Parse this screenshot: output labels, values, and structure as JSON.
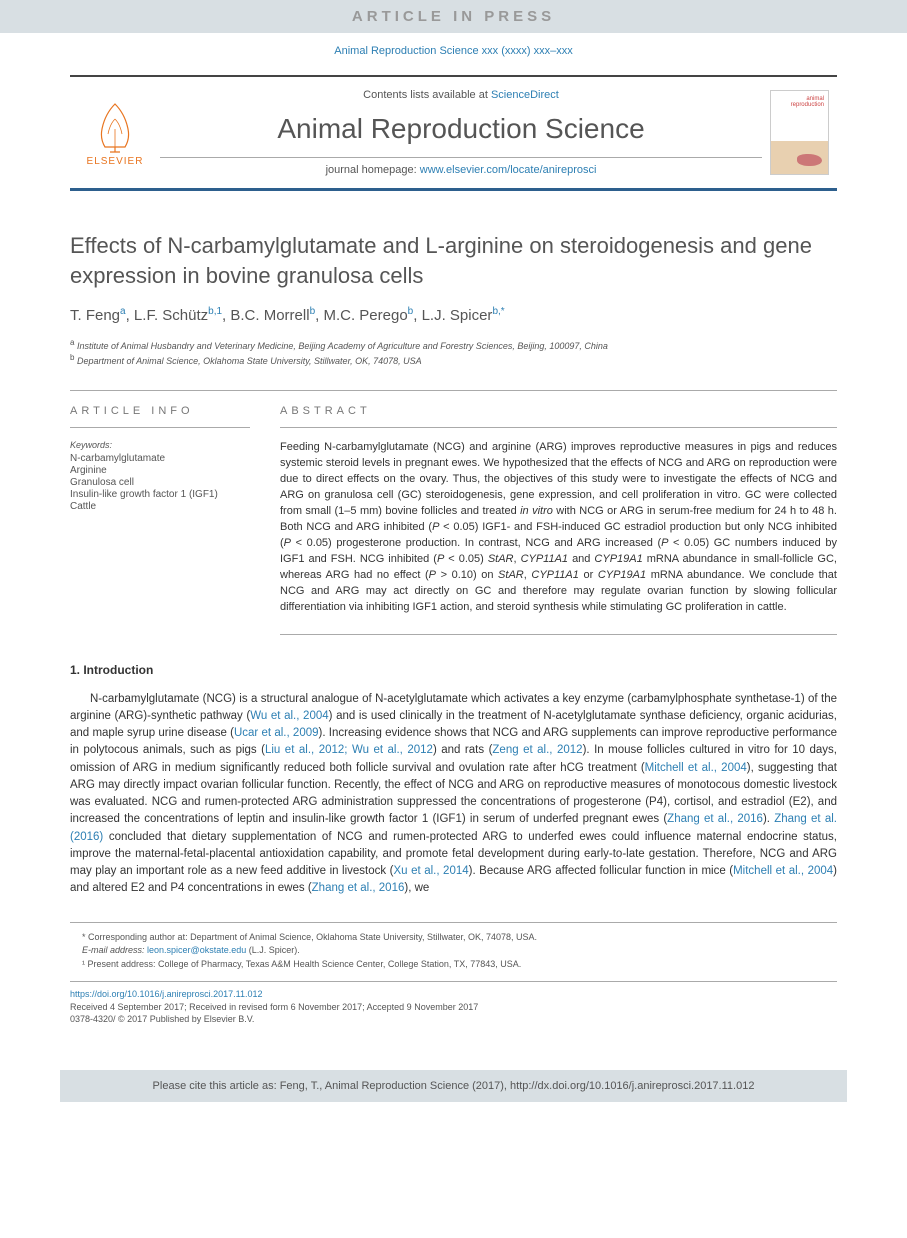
{
  "banner": "ARTICLE IN PRESS",
  "citation_top": "Animal Reproduction Science xxx (xxxx) xxx–xxx",
  "header": {
    "contents_prefix": "Contents lists available at ",
    "contents_link": "ScienceDirect",
    "journal_name": "Animal Reproduction Science",
    "homepage_prefix": "journal homepage: ",
    "homepage_link": "www.elsevier.com/locate/anireprosci",
    "elsevier_label": "ELSEVIER"
  },
  "article": {
    "title": "Effects of N-carbamylglutamate and L-arginine on steroidogenesis and gene expression in bovine granulosa cells",
    "authors_html": "T. Feng<sup><a>a</a></sup>, L.F. Schütz<sup><a>b</a>,<a>1</a></sup>, B.C. Morrell<sup><a>b</a></sup>, M.C. Perego<sup><a>b</a></sup>, L.J. Spicer<sup><a>b</a>,<a>*</a></sup>",
    "affiliations": [
      {
        "sup": "a",
        "text": "Institute of Animal Husbandry and Veterinary Medicine, Beijing Academy of Agriculture and Forestry Sciences, Beijing, 100097, China"
      },
      {
        "sup": "b",
        "text": "Department of Animal Science, Oklahoma State University, Stillwater, OK, 74078, USA"
      }
    ]
  },
  "info": {
    "head": "ARTICLE INFO",
    "keywords_label": "Keywords:",
    "keywords": [
      "N-carbamylglutamate",
      "Arginine",
      "Granulosa cell",
      "Insulin-like growth factor 1 (IGF1)",
      "Cattle"
    ]
  },
  "abstract": {
    "head": "ABSTRACT",
    "text": "Feeding N-carbamylglutamate (NCG) and arginine (ARG) improves reproductive measures in pigs and reduces systemic steroid levels in pregnant ewes. We hypothesized that the effects of NCG and ARG on reproduction were due to direct effects on the ovary. Thus, the objectives of this study were to investigate the effects of NCG and ARG on granulosa cell (GC) steroidogenesis, gene expression, and cell proliferation in vitro. GC were collected from small (1–5 mm) bovine follicles and treated <em>in vitro</em> with NCG or ARG in serum-free medium for 24 h to 48 h. Both NCG and ARG inhibited (<em>P</em> < 0.05) IGF1- and FSH-induced GC estradiol production but only NCG inhibited (<em>P</em> < 0.05) progesterone production. In contrast, NCG and ARG increased (<em>P</em> < 0.05) GC numbers induced by IGF1 and FSH. NCG inhibited (<em>P</em> < 0.05) <em>StAR</em>, <em>CYP11A1</em> and <em>CYP19A1</em> mRNA abundance in small-follicle GC, whereas ARG had no effect (<em>P</em> > 0.10) on <em>StAR</em>, <em>CYP11A1</em> or <em>CYP19A1</em> mRNA abundance. We conclude that NCG and ARG may act directly on GC and therefore may regulate ovarian function by slowing follicular differentiation via inhibiting IGF1 action, and steroid synthesis while stimulating GC proliferation in cattle."
  },
  "intro": {
    "head": "1. Introduction",
    "body": "N-carbamylglutamate (NCG) is a structural analogue of N-acetylglutamate which activates a key enzyme (carbamylphosphate synthetase-1) of the arginine (ARG)-synthetic pathway (<a>Wu et al., 2004</a>) and is used clinically in the treatment of N-acetylglutamate synthase deficiency, organic acidurias, and maple syrup urine disease (<a>Ucar et al., 2009</a>). Increasing evidence shows that NCG and ARG supplements can improve reproductive performance in polytocous animals, such as pigs (<a>Liu et al., 2012; Wu et al., 2012</a>) and rats (<a>Zeng et al., 2012</a>). In mouse follicles cultured in vitro for 10 days, omission of ARG in medium significantly reduced both follicle survival and ovulation rate after hCG treatment (<a>Mitchell et al., 2004</a>), suggesting that ARG may directly impact ovarian follicular function. Recently, the effect of NCG and ARG on reproductive measures of monotocous domestic livestock was evaluated. NCG and rumen-protected ARG administration suppressed the concentrations of progesterone (P4), cortisol, and estradiol (E2), and increased the concentrations of leptin and insulin-like growth factor 1 (IGF1) in serum of underfed pregnant ewes (<a>Zhang et al., 2016</a>). <a>Zhang et al. (2016)</a> concluded that dietary supplementation of NCG and rumen-protected ARG to underfed ewes could influence maternal endocrine status, improve the maternal-fetal-placental antioxidation capability, and promote fetal development during early-to-late gestation. Therefore, NCG and ARG may play an important role as a new feed additive in livestock (<a>Xu et al., 2014</a>). Because ARG affected follicular function in mice (<a>Mitchell et al., 2004</a>) and altered E2 and P4 concentrations in ewes (<a>Zhang et al., 2016</a>), we"
  },
  "footnotes": {
    "corr": "* Corresponding author at: Department of Animal Science, Oklahoma State University, Stillwater, OK, 74078, USA.",
    "email_label": "E-mail address: ",
    "email": "leon.spicer@okstate.edu",
    "email_suffix": " (L.J. Spicer).",
    "present": "¹ Present address: College of Pharmacy, Texas A&M Health Science Center, College Station, TX, 77843, USA."
  },
  "doi": {
    "link": "https://doi.org/10.1016/j.anireprosci.2017.11.012",
    "received": "Received 4 September 2017; Received in revised form 6 November 2017; Accepted 9 November 2017",
    "issn": "0378-4320/ © 2017 Published by Elsevier B.V."
  },
  "cite_box": "Please cite this article as: Feng, T., Animal Reproduction Science (2017), http://dx.doi.org/10.1016/j.anireprosci.2017.11.012"
}
